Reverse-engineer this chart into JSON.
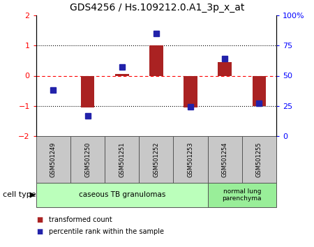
{
  "title": "GDS4256 / Hs.109212.0.A1_3p_x_at",
  "samples": [
    "GSM501249",
    "GSM501250",
    "GSM501251",
    "GSM501252",
    "GSM501253",
    "GSM501254",
    "GSM501255"
  ],
  "transformed_count": [
    0.0,
    -1.05,
    0.05,
    1.0,
    -1.05,
    0.45,
    -1.0
  ],
  "percentile_rank": [
    38,
    17,
    57,
    85,
    24,
    64,
    27
  ],
  "ylim_left": [
    -2,
    2
  ],
  "ylim_right": [
    0,
    100
  ],
  "yticks_left": [
    -2,
    -1,
    0,
    1,
    2
  ],
  "yticks_right": [
    0,
    25,
    50,
    75,
    100
  ],
  "ytick_labels_right": [
    "0",
    "25",
    "50",
    "75",
    "100%"
  ],
  "bar_color": "#AA2222",
  "dot_color": "#2222AA",
  "cell_type_groups": [
    {
      "label": "caseous TB granulomas",
      "n_samples": 5,
      "color": "#bbffbb"
    },
    {
      "label": "normal lung\nparenchyma",
      "n_samples": 2,
      "color": "#99ee99"
    }
  ],
  "cell_type_label": "cell type",
  "legend_items": [
    {
      "color": "#AA2222",
      "label": "transformed count"
    },
    {
      "color": "#2222AA",
      "label": "percentile rank within the sample"
    }
  ],
  "background_color": "#ffffff",
  "sample_box_color": "#c8c8c8"
}
